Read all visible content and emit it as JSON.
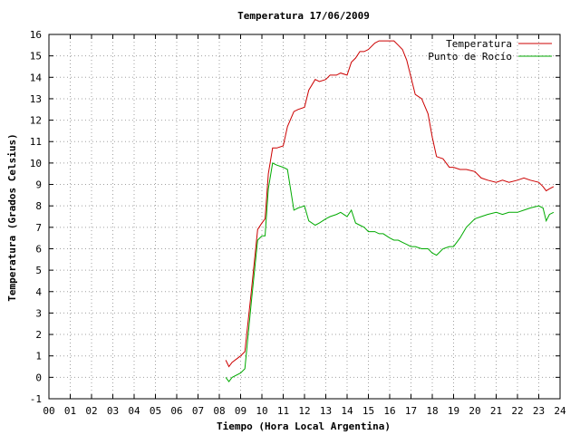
{
  "chart_data": {
    "type": "line",
    "title": "Temperatura 17/06/2009",
    "xlabel": "Tiempo (Hora Local Argentina)",
    "ylabel": "Temperatura (Grados Celsius)",
    "xlim": [
      0,
      24
    ],
    "ylim": [
      -1,
      16
    ],
    "x_ticks": [
      "00",
      "01",
      "02",
      "03",
      "04",
      "05",
      "06",
      "07",
      "08",
      "09",
      "10",
      "11",
      "12",
      "13",
      "14",
      "15",
      "16",
      "17",
      "18",
      "19",
      "20",
      "21",
      "22",
      "23",
      "24"
    ],
    "y_ticks": [
      "-1",
      "0",
      "1",
      "2",
      "3",
      "4",
      "5",
      "6",
      "7",
      "8",
      "9",
      "10",
      "11",
      "12",
      "13",
      "14",
      "15",
      "16"
    ],
    "grid": true,
    "legend_position": "top-right",
    "series": [
      {
        "name": "Temperatura",
        "color": "#cc0000",
        "x": [
          8.3,
          8.45,
          8.6,
          9.0,
          9.2,
          9.5,
          9.8,
          10.0,
          10.15,
          10.3,
          10.5,
          10.7,
          11.0,
          11.2,
          11.5,
          11.7,
          12.0,
          12.2,
          12.5,
          12.7,
          13.0,
          13.2,
          13.5,
          13.7,
          14.0,
          14.2,
          14.4,
          14.6,
          14.8,
          15.0,
          15.3,
          15.5,
          15.7,
          16.0,
          16.2,
          16.4,
          16.6,
          16.8,
          17.0,
          17.2,
          17.5,
          17.8,
          18.0,
          18.2,
          18.5,
          18.8,
          19.0,
          19.3,
          19.6,
          20.0,
          20.3,
          20.6,
          21.0,
          21.3,
          21.6,
          22.0,
          22.3,
          22.6,
          23.0,
          23.2,
          23.35,
          23.5,
          23.7
        ],
        "y": [
          0.8,
          0.5,
          0.7,
          1.0,
          1.2,
          4.0,
          6.9,
          7.2,
          7.4,
          9.5,
          10.7,
          10.7,
          10.8,
          11.7,
          12.4,
          12.5,
          12.6,
          13.4,
          13.9,
          13.8,
          13.9,
          14.1,
          14.1,
          14.2,
          14.1,
          14.7,
          14.9,
          15.2,
          15.2,
          15.3,
          15.6,
          15.7,
          15.7,
          15.7,
          15.7,
          15.5,
          15.3,
          14.8,
          14.0,
          13.2,
          13.0,
          12.3,
          11.2,
          10.3,
          10.2,
          9.8,
          9.8,
          9.7,
          9.7,
          9.6,
          9.3,
          9.2,
          9.1,
          9.2,
          9.1,
          9.2,
          9.3,
          9.2,
          9.1,
          8.9,
          8.7,
          8.8,
          8.9
        ]
      },
      {
        "name": "Punto de Rocío",
        "color": "#00aa00",
        "x": [
          8.3,
          8.45,
          8.6,
          9.0,
          9.2,
          9.5,
          9.8,
          10.0,
          10.15,
          10.3,
          10.5,
          10.7,
          11.0,
          11.2,
          11.5,
          11.7,
          12.0,
          12.2,
          12.5,
          12.7,
          13.0,
          13.2,
          13.5,
          13.7,
          14.0,
          14.2,
          14.4,
          14.6,
          14.8,
          15.0,
          15.3,
          15.5,
          15.7,
          16.0,
          16.2,
          16.4,
          16.6,
          16.8,
          17.0,
          17.2,
          17.5,
          17.8,
          18.0,
          18.2,
          18.5,
          18.8,
          19.0,
          19.3,
          19.6,
          20.0,
          20.3,
          20.6,
          21.0,
          21.3,
          21.6,
          22.0,
          22.3,
          22.6,
          23.0,
          23.2,
          23.35,
          23.5,
          23.7
        ],
        "y": [
          0.0,
          -0.2,
          0.0,
          0.2,
          0.4,
          3.5,
          6.4,
          6.6,
          6.6,
          8.8,
          10.0,
          9.9,
          9.8,
          9.7,
          7.8,
          7.9,
          8.0,
          7.3,
          7.1,
          7.2,
          7.4,
          7.5,
          7.6,
          7.7,
          7.5,
          7.8,
          7.2,
          7.1,
          7.0,
          6.8,
          6.8,
          6.7,
          6.7,
          6.5,
          6.4,
          6.4,
          6.3,
          6.2,
          6.1,
          6.1,
          6.0,
          6.0,
          5.8,
          5.7,
          6.0,
          6.1,
          6.1,
          6.5,
          7.0,
          7.4,
          7.5,
          7.6,
          7.7,
          7.6,
          7.7,
          7.7,
          7.8,
          7.9,
          8.0,
          7.9,
          7.3,
          7.6,
          7.7
        ]
      }
    ]
  }
}
